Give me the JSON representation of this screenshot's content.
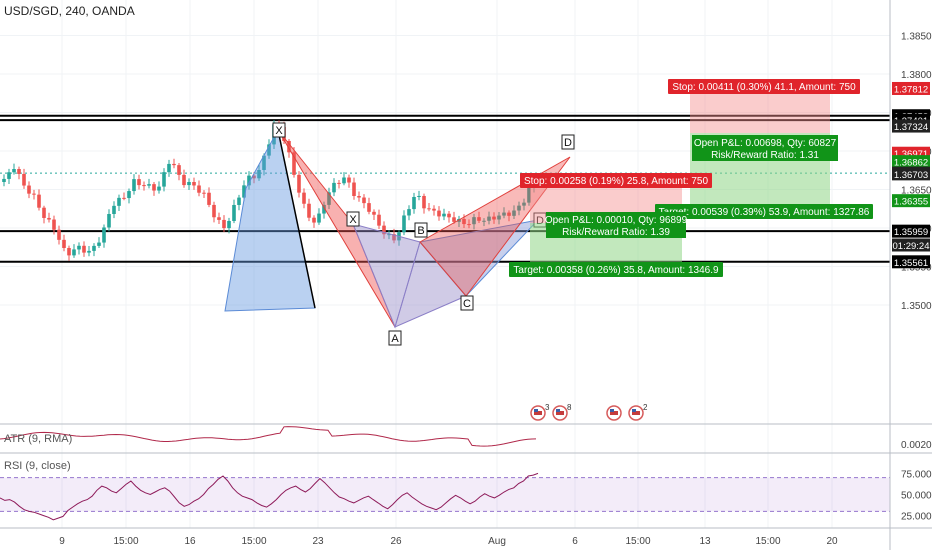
{
  "title": "USD/SGD, 240, OANDA",
  "timestamp": "01:29:24",
  "atr_label": "ATR (9, RMA)",
  "rsi_label": "RSI (9, close)",
  "chart_data": {
    "type": "candlestick",
    "symbol": "USD/SGD",
    "interval": "240",
    "source": "OANDA",
    "price_ticks": [
      "1.38500",
      "1.38000",
      "1.37500",
      "1.37000",
      "1.36500",
      "1.36000",
      "1.35500",
      "1.35000"
    ],
    "price_tick_values": [
      1.385,
      1.38,
      1.375,
      1.37,
      1.365,
      1.36,
      1.355,
      1.35
    ],
    "ylim": [
      1.3473,
      1.3872
    ],
    "x_ticks": [
      "9",
      "15:00",
      "16",
      "15:00",
      "23",
      "26",
      "Aug",
      "6",
      "15:00",
      "13",
      "15:00",
      "20"
    ],
    "horizontal_levels": [
      {
        "price": 1.37458,
        "label": "1.37458"
      },
      {
        "price": 1.37401,
        "label": "1.37401"
      },
      {
        "price": 1.35959,
        "label": "1.35959"
      },
      {
        "price": 1.35561,
        "label": "1.35561"
      }
    ],
    "price_labels": [
      {
        "price": 1.37812,
        "label": "1.37812",
        "color": "#e0242b"
      },
      {
        "price": 1.37324,
        "label": "1.37324",
        "color": "#222222"
      },
      {
        "price": 1.36971,
        "label": "1.36971",
        "color": "#e0242b"
      },
      {
        "price": 1.36862,
        "label": "1.36862",
        "color": "#119418"
      },
      {
        "price": 1.36713,
        "label": "1.36713",
        "color": "#222222"
      },
      {
        "price": 1.36703,
        "label": "1.36703",
        "color": "#222222"
      },
      {
        "price": 1.36355,
        "label": "1.36355",
        "color": "#119418"
      }
    ],
    "current_price": 1.36713,
    "pattern_points": {
      "X": "X",
      "A": "A",
      "B": "B",
      "C": "C",
      "D": "D"
    },
    "positions": [
      {
        "stop": "Stop: 0.00411 (0.30%) 41.1, Amount: 750",
        "open": "Open P&L: 0.00698, Qty: 60827",
        "rr": "Risk/Reward Ratio: 1.31",
        "target": "Target: 0.00539 (0.39%) 53.9, Amount: 1327.86"
      },
      {
        "stop": "Stop: 0.00258 (0.19%) 25.8, Amount: 750",
        "open": "Open P&L: 0.00010, Qty: 96899",
        "rr": "Risk/Reward Ratio: 1.39",
        "target": "Target: 0.00358 (0.26%) 35.8, Amount: 1346.9"
      }
    ],
    "events": [
      "3",
      "8",
      "",
      "2"
    ],
    "atr_ticks": [
      "0.0020"
    ],
    "rsi_ticks": [
      "75.0000",
      "50.0000",
      "25.0000"
    ],
    "rsi_band": [
      30,
      70
    ],
    "rsi_ylim": [
      15,
      85
    ],
    "rsi_values": [
      46,
      43,
      44,
      41,
      36,
      32,
      30,
      29,
      27,
      25,
      23,
      20,
      22,
      24,
      31,
      35,
      39,
      42,
      44,
      48,
      55,
      60,
      58,
      54,
      52,
      57,
      62,
      66,
      60,
      55,
      52,
      50,
      53,
      56,
      58,
      54,
      47,
      40,
      36,
      38,
      42,
      45,
      50,
      57,
      62,
      68,
      72,
      66,
      58,
      52,
      48,
      46,
      44,
      40,
      37,
      35,
      39,
      44,
      50,
      55,
      58,
      60,
      56,
      53,
      57,
      63,
      69,
      64,
      58,
      52,
      47,
      45,
      42,
      40,
      43,
      46,
      48,
      44,
      40,
      36,
      33,
      38,
      44,
      49,
      52,
      47,
      43,
      39,
      36,
      34,
      32,
      35,
      40,
      45,
      49,
      46,
      42,
      39,
      42,
      47,
      51,
      48,
      46,
      49,
      53,
      56,
      58,
      63,
      66,
      72,
      73,
      75
    ]
  }
}
